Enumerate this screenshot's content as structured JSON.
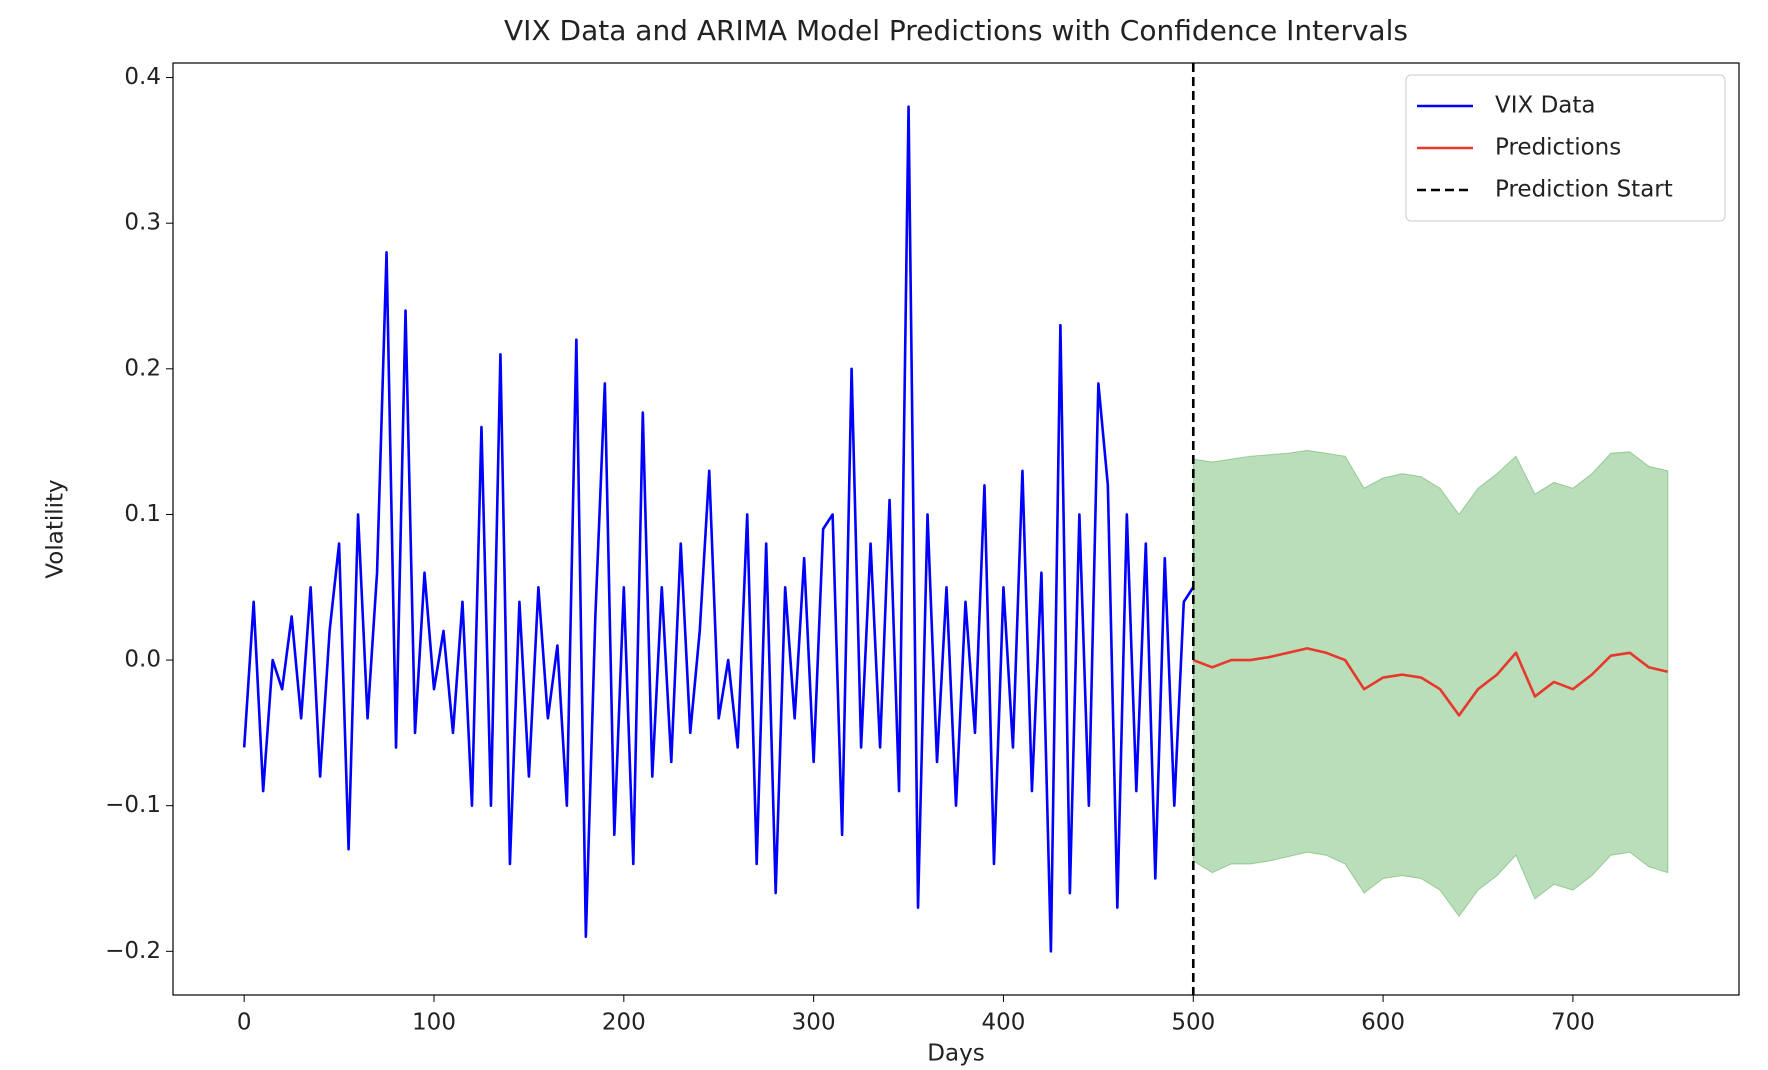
{
  "chart_data": {
    "type": "line",
    "title": "VIX Data and ARIMA Model Predictions with Confidence Intervals",
    "x_label": "Days",
    "y_label": "Volatility",
    "xlim": [
      -37.5,
      787.5
    ],
    "ylim": [
      -0.23,
      0.41
    ],
    "xticks": [
      0,
      100,
      200,
      300,
      400,
      500,
      600,
      700
    ],
    "yticks": [
      {
        "value": -0.2,
        "label": "−0.2"
      },
      {
        "value": -0.1,
        "label": "−0.1"
      },
      {
        "value": 0,
        "label": "0.0"
      },
      0.1,
      0.2,
      0.3,
      0.4
    ],
    "grid": false,
    "legend": "upper right",
    "series": [
      {
        "name": "VIX Data",
        "color": "#0000ff",
        "x": [
          0,
          5,
          10,
          15,
          20,
          25,
          30,
          35,
          40,
          45,
          50,
          55,
          60,
          65,
          70,
          75,
          80,
          85,
          90,
          95,
          100,
          105,
          110,
          115,
          120,
          125,
          130,
          135,
          140,
          145,
          150,
          155,
          160,
          165,
          170,
          175,
          180,
          185,
          190,
          195,
          200,
          205,
          210,
          215,
          220,
          225,
          230,
          235,
          240,
          245,
          250,
          255,
          260,
          265,
          270,
          275,
          280,
          285,
          290,
          295,
          300,
          305,
          310,
          315,
          320,
          325,
          330,
          335,
          340,
          345,
          350,
          355,
          360,
          365,
          370,
          375,
          380,
          385,
          390,
          395,
          400,
          405,
          410,
          415,
          420,
          425,
          430,
          435,
          440,
          445,
          450,
          455,
          460,
          465,
          470,
          475,
          480,
          485,
          490,
          495,
          500
        ],
        "values": [
          -0.06,
          0.04,
          -0.09,
          0.0,
          -0.02,
          0.03,
          -0.04,
          0.05,
          -0.08,
          0.02,
          0.08,
          -0.13,
          0.1,
          -0.04,
          0.06,
          0.28,
          -0.06,
          0.24,
          -0.05,
          0.06,
          -0.02,
          0.02,
          -0.05,
          0.04,
          -0.1,
          0.16,
          -0.1,
          0.21,
          -0.14,
          0.04,
          -0.08,
          0.05,
          -0.04,
          0.01,
          -0.1,
          0.22,
          -0.19,
          0.03,
          0.19,
          -0.12,
          0.05,
          -0.14,
          0.17,
          -0.08,
          0.05,
          -0.07,
          0.08,
          -0.05,
          0.02,
          0.13,
          -0.04,
          0.0,
          -0.06,
          0.1,
          -0.14,
          0.08,
          -0.16,
          0.05,
          -0.04,
          0.07,
          -0.07,
          0.09,
          0.1,
          -0.12,
          0.2,
          -0.06,
          0.08,
          -0.06,
          0.11,
          -0.09,
          0.38,
          -0.17,
          0.1,
          -0.07,
          0.05,
          -0.1,
          0.04,
          -0.05,
          0.12,
          -0.14,
          0.05,
          -0.06,
          0.13,
          -0.09,
          0.06,
          -0.2,
          0.23,
          -0.16,
          0.1,
          -0.1,
          0.19,
          0.12,
          -0.17,
          0.1,
          -0.09,
          0.08,
          -0.15,
          0.07,
          -0.1,
          0.04,
          0.05
        ]
      },
      {
        "name": "Predictions",
        "color": "#e8382b",
        "x": [
          500,
          510,
          520,
          530,
          540,
          550,
          560,
          570,
          580,
          590,
          600,
          610,
          620,
          630,
          640,
          650,
          660,
          670,
          680,
          690,
          700,
          710,
          720,
          730,
          740,
          750
        ],
        "values": [
          0.0,
          -0.005,
          0.0,
          0.0,
          0.002,
          0.005,
          0.008,
          0.005,
          0.0,
          -0.02,
          -0.012,
          -0.01,
          -0.012,
          -0.02,
          -0.038,
          -0.02,
          -0.01,
          0.005,
          -0.025,
          -0.015,
          -0.02,
          -0.01,
          0.003,
          0.005,
          -0.005,
          -0.008
        ]
      }
    ],
    "confidence_interval": {
      "color": "#008000",
      "x": [
        500,
        510,
        520,
        530,
        540,
        550,
        560,
        570,
        580,
        590,
        600,
        610,
        620,
        630,
        640,
        650,
        660,
        670,
        680,
        690,
        700,
        710,
        720,
        730,
        740,
        750
      ],
      "lower": [
        -0.138,
        -0.146,
        -0.14,
        -0.14,
        -0.138,
        -0.135,
        -0.132,
        -0.134,
        -0.14,
        -0.16,
        -0.15,
        -0.148,
        -0.15,
        -0.158,
        -0.176,
        -0.158,
        -0.148,
        -0.134,
        -0.164,
        -0.154,
        -0.158,
        -0.148,
        -0.134,
        -0.132,
        -0.142,
        -0.146
      ],
      "upper": [
        0.138,
        0.136,
        0.138,
        0.14,
        0.141,
        0.142,
        0.144,
        0.142,
        0.14,
        0.118,
        0.125,
        0.128,
        0.126,
        0.118,
        0.1,
        0.118,
        0.128,
        0.14,
        0.114,
        0.122,
        0.118,
        0.128,
        0.142,
        0.143,
        0.133,
        0.13
      ]
    },
    "vline": {
      "name": "Prediction Start",
      "x": 500,
      "color": "#000000"
    }
  }
}
